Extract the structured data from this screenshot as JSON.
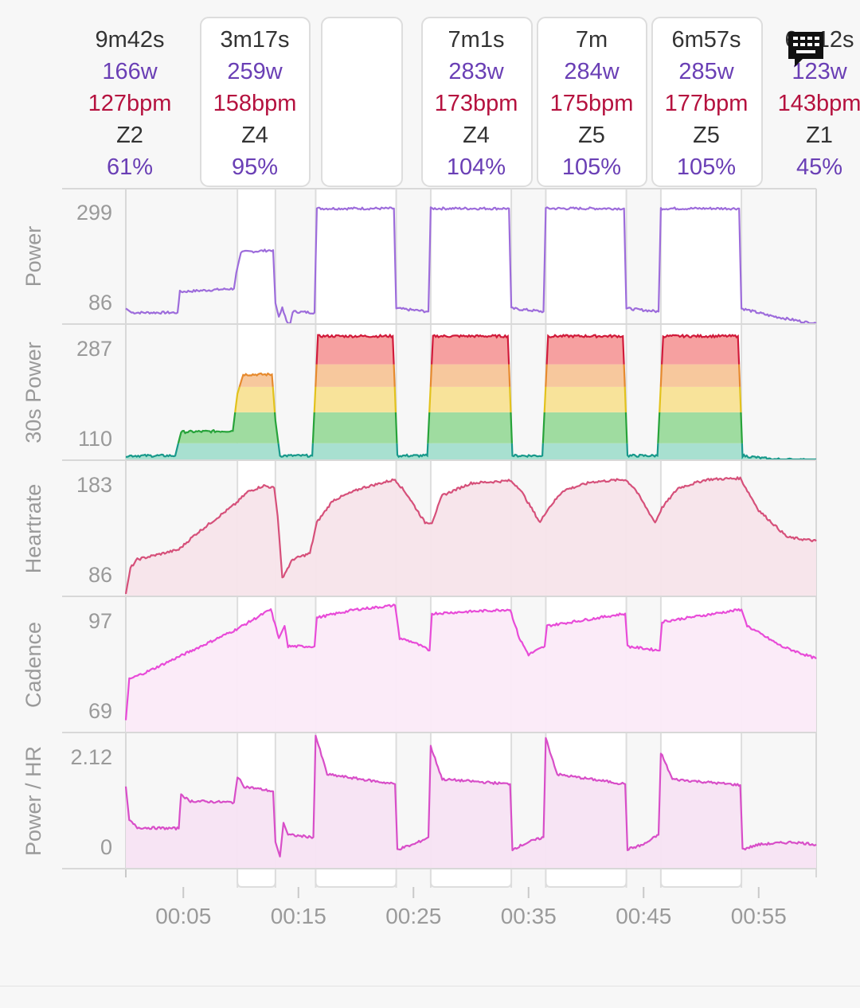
{
  "laps": [
    {
      "duration": "9m42s",
      "power": "166w",
      "hr": "127bpm",
      "zone": "Z2",
      "pct": "61%",
      "selected": false
    },
    {
      "duration": "3m17s",
      "power": "259w",
      "hr": "158bpm",
      "zone": "Z4",
      "pct": "95%",
      "selected": true
    },
    {
      "duration": "",
      "power": "",
      "hr": "",
      "zone": "",
      "pct": "",
      "selected": true
    },
    {
      "duration": "7m1s",
      "power": "283w",
      "hr": "173bpm",
      "zone": "Z4",
      "pct": "104%",
      "selected": true
    },
    {
      "duration": "7m",
      "power": "284w",
      "hr": "175bpm",
      "zone": "Z5",
      "pct": "105%",
      "selected": true
    },
    {
      "duration": "6m57s",
      "power": "285w",
      "hr": "177bpm",
      "zone": "Z5",
      "pct": "105%",
      "selected": true
    },
    {
      "duration": "6m12s",
      "power": "123w",
      "hr": "143bpm",
      "zone": "Z1",
      "pct": "45%",
      "selected": false
    }
  ],
  "chart_data": {
    "type": "line",
    "x_tick_labels": [
      "00:05",
      "00:15",
      "00:25",
      "00:35",
      "00:45",
      "00:55"
    ],
    "x_tick_minutes": [
      5,
      15,
      25,
      35,
      45,
      55
    ],
    "x_range_minutes": [
      0,
      60
    ],
    "lap_boundaries_minutes": [
      0,
      9.7,
      13,
      16.5,
      23.5,
      26.5,
      33.5,
      36.5,
      43.5,
      46.5,
      53.5,
      60
    ],
    "panels": [
      {
        "name": "Power",
        "y_ticks": [
          "299",
          "86"
        ],
        "y_tick_values": [
          299,
          86
        ],
        "ylim": [
          70,
          330
        ],
        "color": "#9d6cdb",
        "fill": "none",
        "series": [
          [
            0,
            100
          ],
          [
            0.5,
            92
          ],
          [
            4.5,
            92
          ],
          [
            4.7,
            132
          ],
          [
            9.4,
            138
          ],
          [
            9.6,
            168
          ],
          [
            10,
            208
          ],
          [
            12.8,
            212
          ],
          [
            13,
            110
          ],
          [
            13.3,
            84
          ],
          [
            13.6,
            100
          ],
          [
            14.2,
            60
          ],
          [
            14.5,
            94
          ],
          [
            16.4,
            92
          ],
          [
            16.6,
            292
          ],
          [
            23.3,
            292
          ],
          [
            23.5,
            100
          ],
          [
            26.3,
            94
          ],
          [
            26.5,
            292
          ],
          [
            33.3,
            292
          ],
          [
            33.5,
            100
          ],
          [
            36.3,
            94
          ],
          [
            36.5,
            292
          ],
          [
            43.3,
            292
          ],
          [
            43.5,
            100
          ],
          [
            46.3,
            94
          ],
          [
            46.5,
            292
          ],
          [
            53.3,
            292
          ],
          [
            53.5,
            100
          ],
          [
            56,
            86
          ],
          [
            60,
            70
          ]
        ]
      },
      {
        "name": "30s Power",
        "y_ticks": [
          "287",
          "110"
        ],
        "y_tick_values": [
          287,
          110
        ],
        "ylim": [
          80,
          320
        ],
        "color": "#333333",
        "fill": "zones",
        "series": [
          [
            0,
            88
          ],
          [
            4.3,
            88
          ],
          [
            4.8,
            130
          ],
          [
            9.3,
            132
          ],
          [
            9.7,
            198
          ],
          [
            10.2,
            232
          ],
          [
            12.7,
            232
          ],
          [
            13,
            150
          ],
          [
            13.4,
            88
          ],
          [
            16.2,
            88
          ],
          [
            16.7,
            300
          ],
          [
            23.2,
            300
          ],
          [
            23.6,
            88
          ],
          [
            26.2,
            88
          ],
          [
            26.7,
            300
          ],
          [
            33.2,
            300
          ],
          [
            33.6,
            88
          ],
          [
            36.2,
            88
          ],
          [
            36.7,
            300
          ],
          [
            43.2,
            300
          ],
          [
            43.6,
            88
          ],
          [
            46.2,
            88
          ],
          [
            46.7,
            300
          ],
          [
            53.2,
            300
          ],
          [
            53.6,
            88
          ],
          [
            56,
            82
          ],
          [
            60,
            80
          ]
        ]
      },
      {
        "name": "Heartrate",
        "y_ticks": [
          "183",
          "86"
        ],
        "y_tick_values": [
          183,
          86
        ],
        "ylim": [
          80,
          190
        ],
        "color": "#d6507a",
        "fill": "#f7e4ea",
        "series": [
          [
            0,
            82
          ],
          [
            0.4,
            103
          ],
          [
            1,
            110
          ],
          [
            4.6,
            118
          ],
          [
            6,
            130
          ],
          [
            9.5,
            155
          ],
          [
            10.6,
            165
          ],
          [
            12,
            170
          ],
          [
            12.9,
            168
          ],
          [
            13.2,
            145
          ],
          [
            13.6,
            95
          ],
          [
            14.5,
            110
          ],
          [
            16,
            115
          ],
          [
            16.6,
            140
          ],
          [
            18,
            158
          ],
          [
            20.5,
            168
          ],
          [
            23.4,
            175
          ],
          [
            24.5,
            162
          ],
          [
            26,
            140
          ],
          [
            26.6,
            140
          ],
          [
            27.5,
            162
          ],
          [
            30,
            172
          ],
          [
            33.4,
            174
          ],
          [
            34.2,
            168
          ],
          [
            36,
            140
          ],
          [
            36.6,
            150
          ],
          [
            38,
            166
          ],
          [
            40.5,
            173
          ],
          [
            43.4,
            175
          ],
          [
            44.2,
            168
          ],
          [
            46,
            140
          ],
          [
            46.6,
            152
          ],
          [
            48,
            168
          ],
          [
            50.5,
            175
          ],
          [
            53.4,
            176
          ],
          [
            55,
            150
          ],
          [
            57.5,
            128
          ],
          [
            60,
            125
          ]
        ]
      },
      {
        "name": "Cadence",
        "y_ticks": [
          "97",
          "69"
        ],
        "y_tick_values": [
          97,
          69
        ],
        "ylim": [
          67,
          100
        ],
        "color": "#e84bd8",
        "fill": "#fbeaf8",
        "series": [
          [
            0,
            70
          ],
          [
            0.3,
            80
          ],
          [
            2,
            82
          ],
          [
            5,
            86
          ],
          [
            9.5,
            92
          ],
          [
            12.6,
            97
          ],
          [
            13.3,
            90
          ],
          [
            13.8,
            93
          ],
          [
            14.1,
            88
          ],
          [
            16.4,
            88
          ],
          [
            16.6,
            95
          ],
          [
            20,
            97
          ],
          [
            23.4,
            98
          ],
          [
            23.8,
            90
          ],
          [
            25,
            89
          ],
          [
            26.4,
            87
          ],
          [
            26.6,
            96
          ],
          [
            33.4,
            97
          ],
          [
            34.2,
            90
          ],
          [
            35,
            86
          ],
          [
            36.4,
            88
          ],
          [
            36.6,
            93
          ],
          [
            43.4,
            96
          ],
          [
            43.6,
            88
          ],
          [
            46.4,
            87
          ],
          [
            46.6,
            94
          ],
          [
            53.5,
            97
          ],
          [
            54,
            93
          ],
          [
            57,
            88
          ],
          [
            60,
            85
          ]
        ]
      },
      {
        "name": "Power / HR",
        "y_ticks": [
          "2.12",
          "0"
        ],
        "y_tick_values": [
          2.12,
          0
        ],
        "ylim": [
          -0.45,
          2.35
        ],
        "color": "#d84ec8",
        "fill": "#f7e3f3",
        "series": [
          [
            0,
            1.25
          ],
          [
            0.3,
            0.55
          ],
          [
            1,
            0.4
          ],
          [
            4.6,
            0.38
          ],
          [
            4.8,
            1.1
          ],
          [
            5.5,
            0.95
          ],
          [
            9.4,
            0.92
          ],
          [
            9.7,
            1.45
          ],
          [
            10.3,
            1.25
          ],
          [
            12.8,
            1.15
          ],
          [
            13,
            0.1
          ],
          [
            13.4,
            -0.2
          ],
          [
            13.7,
            0.5
          ],
          [
            14.1,
            0.25
          ],
          [
            16.3,
            0.2
          ],
          [
            16.5,
            2.3
          ],
          [
            17.5,
            1.5
          ],
          [
            23.4,
            1.3
          ],
          [
            23.6,
            -0.05
          ],
          [
            25,
            0.05
          ],
          [
            26.3,
            0.2
          ],
          [
            26.5,
            2.08
          ],
          [
            27.5,
            1.4
          ],
          [
            33.4,
            1.3
          ],
          [
            33.6,
            -0.05
          ],
          [
            35,
            0.1
          ],
          [
            36.3,
            0.2
          ],
          [
            36.5,
            2.25
          ],
          [
            37.5,
            1.5
          ],
          [
            43.4,
            1.3
          ],
          [
            43.6,
            -0.05
          ],
          [
            45,
            0.05
          ],
          [
            46.3,
            0.25
          ],
          [
            46.5,
            1.95
          ],
          [
            47.5,
            1.4
          ],
          [
            53.4,
            1.28
          ],
          [
            53.6,
            -0.05
          ],
          [
            55,
            0.05
          ],
          [
            58,
            0.1
          ],
          [
            60,
            0.05
          ]
        ]
      }
    ],
    "zone_colors": [
      "#a8e0d0",
      "#9fdca0",
      "#f8e39a",
      "#f7c89d",
      "#f6a0a0"
    ],
    "zone_line_colors": [
      "#18998b",
      "#27a33a",
      "#e2c21c",
      "#e68a2e",
      "#d11a3a"
    ]
  }
}
